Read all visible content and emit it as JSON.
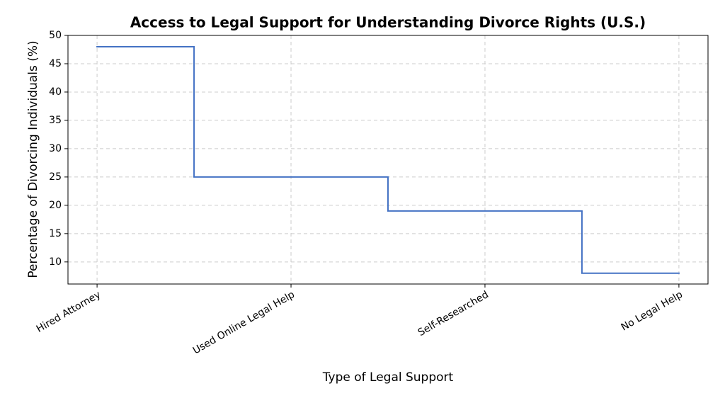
{
  "chart_data": {
    "type": "step",
    "step_where": "mid",
    "title": "Access to Legal Support for Understanding Divorce Rights (U.S.)",
    "x_label": "Type of Legal Support",
    "y_label": "Percentage of Divorcing Individuals (%)",
    "categories": [
      "Hired Attorney",
      "Used Online Legal Help",
      "Self-Researched",
      "No Legal Help"
    ],
    "values": [
      48,
      25,
      19,
      8
    ],
    "color": "#4472c4",
    "ylim": [
      6.1,
      50
    ],
    "yticks": [
      10,
      15,
      20,
      25,
      30,
      35,
      40,
      45,
      50
    ],
    "grid": true
  }
}
